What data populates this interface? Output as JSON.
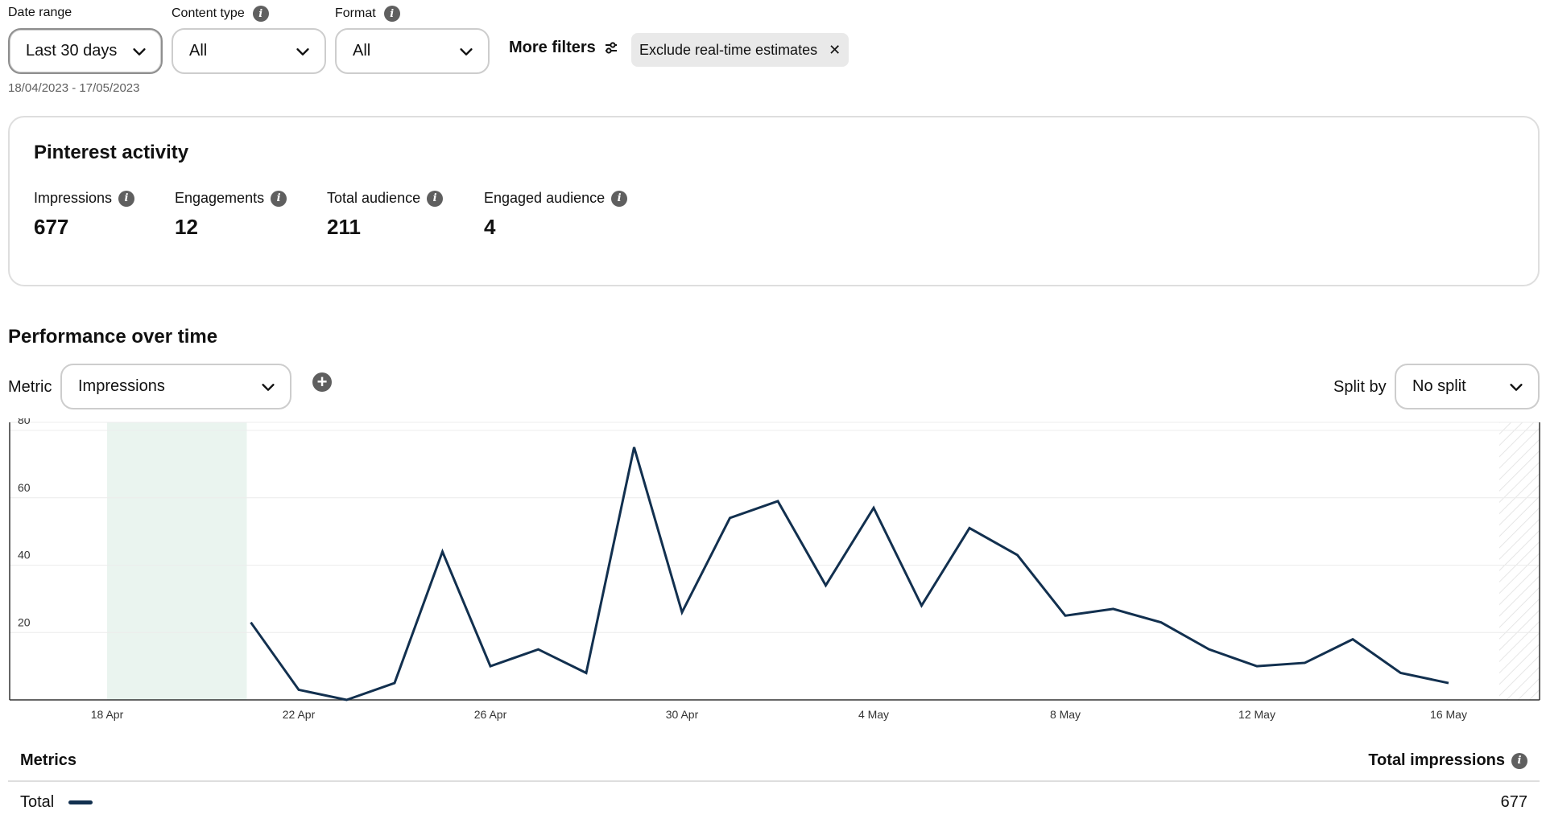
{
  "filters": {
    "date_range": {
      "label": "Date range",
      "value": "Last 30 days",
      "sub": "18/04/2023 - 17/05/2023"
    },
    "content_type": {
      "label": "Content type",
      "value": "All"
    },
    "format": {
      "label": "Format",
      "value": "All"
    },
    "more_filters": "More filters",
    "chip": "Exclude real-time estimates"
  },
  "activity": {
    "title": "Pinterest activity",
    "stats": [
      {
        "label": "Impressions",
        "value": "677"
      },
      {
        "label": "Engagements",
        "value": "12"
      },
      {
        "label": "Total audience",
        "value": "211"
      },
      {
        "label": "Engaged audience",
        "value": "4"
      }
    ]
  },
  "performance": {
    "title": "Performance over time",
    "metric_label": "Metric",
    "metric_value": "Impressions",
    "split_label": "Split by",
    "split_value": "No split"
  },
  "chart_data": {
    "type": "line",
    "x": [
      "21 Apr",
      "22 Apr",
      "23 Apr",
      "24 Apr",
      "25 Apr",
      "26 Apr",
      "27 Apr",
      "28 Apr",
      "29 Apr",
      "30 Apr",
      "1 May",
      "2 May",
      "3 May",
      "4 May",
      "5 May",
      "6 May",
      "7 May",
      "8 May",
      "9 May",
      "10 May",
      "11 May",
      "12 May",
      "13 May",
      "14 May",
      "15 May",
      "16 May"
    ],
    "series": [
      {
        "values": [
          23,
          3,
          0,
          5,
          44,
          10,
          15,
          8,
          75,
          26,
          54,
          59,
          34,
          57,
          28,
          51,
          43,
          25,
          27,
          23,
          15,
          10,
          11,
          18,
          8,
          5
        ]
      }
    ],
    "x_ticks": [
      "18 Apr",
      "22 Apr",
      "26 Apr",
      "30 Apr",
      "4 May",
      "8 May",
      "12 May",
      "16 May"
    ],
    "y_ticks": [
      20,
      40,
      60,
      80
    ],
    "ylim": [
      0,
      80
    ],
    "grid": true,
    "line_color": "#12304f",
    "highlight_color": "#eaf4ef"
  },
  "metrics_table": {
    "header_metrics": "Metrics",
    "header_total": "Total impressions",
    "rows": [
      {
        "label": "Total",
        "value": "677"
      }
    ]
  }
}
